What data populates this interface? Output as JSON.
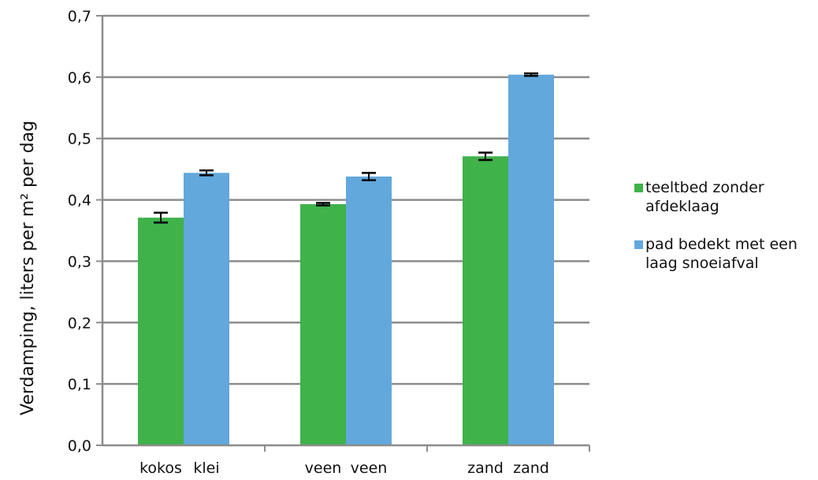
{
  "colors": {
    "series_green": "#3fb24a",
    "series_blue": "#62a8dc",
    "grid": "#8c8c8c",
    "axis": "#8c8c8c",
    "errorbar": "#000000"
  },
  "chart_data": {
    "type": "bar",
    "ylabel": "Verdamping, liters per m² per dag",
    "ylim": [
      0,
      0.7
    ],
    "yticks": [
      {
        "value": 0.0,
        "label": "0,0"
      },
      {
        "value": 0.1,
        "label": "0,1"
      },
      {
        "value": 0.2,
        "label": "0,2"
      },
      {
        "value": 0.3,
        "label": "0,3"
      },
      {
        "value": 0.4,
        "label": "0,4"
      },
      {
        "value": 0.5,
        "label": "0,5"
      },
      {
        "value": 0.6,
        "label": "0,6"
      },
      {
        "value": 0.7,
        "label": "0,7"
      }
    ],
    "grid": true,
    "legend_position": "right",
    "groups": [
      {
        "labels": [
          "kokos",
          "klei"
        ]
      },
      {
        "labels": [
          "veen",
          "veen"
        ]
      },
      {
        "labels": [
          "zand",
          "zand"
        ]
      }
    ],
    "series": [
      {
        "name": "teeltbed zonder afdeklaag",
        "name_lines": [
          "teeltbed zonder",
          "afdeklaag"
        ],
        "values": [
          0.371,
          0.393,
          0.471
        ],
        "errors": [
          0.008,
          0.002,
          0.006
        ]
      },
      {
        "name": "pad bedekt met een laag snoeiafval",
        "name_lines": [
          "pad bedekt met een",
          "laag snoeiafval"
        ],
        "values": [
          0.444,
          0.438,
          0.604
        ],
        "errors": [
          0.004,
          0.006,
          0.002
        ]
      }
    ]
  }
}
